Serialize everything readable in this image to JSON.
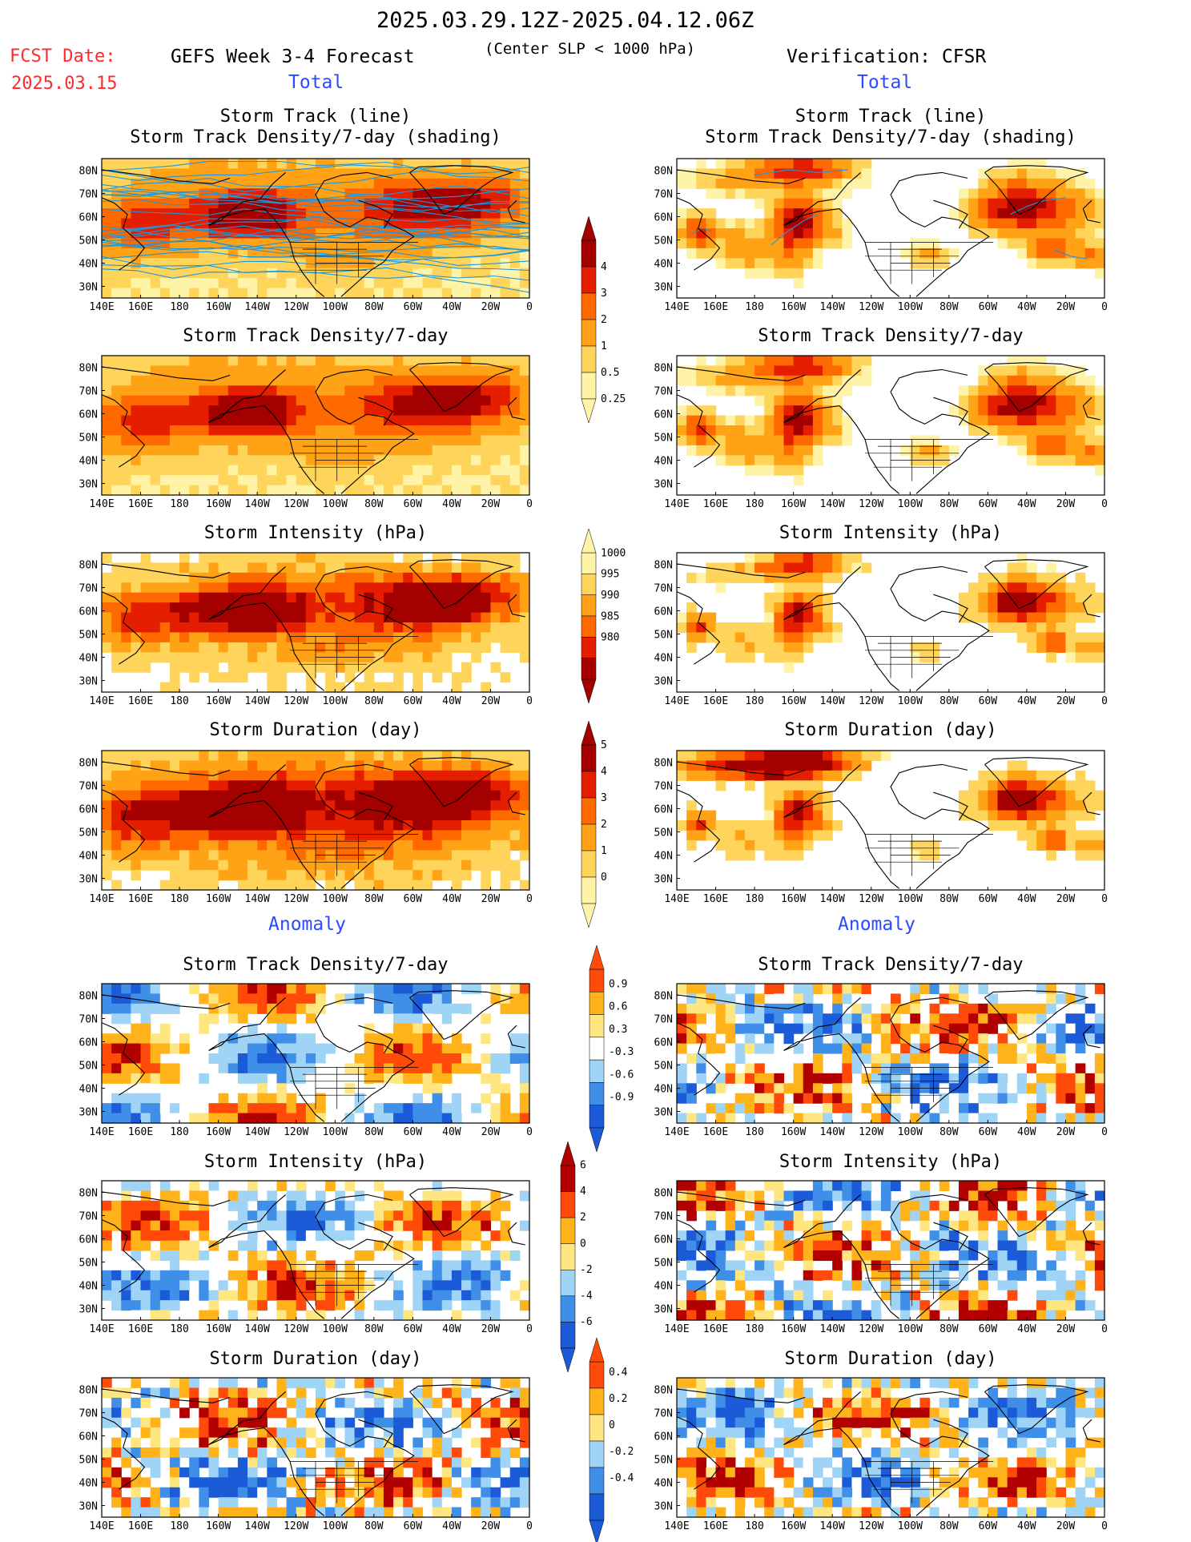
{
  "header": {
    "date_range": "2025.03.29.12Z-2025.04.12.06Z",
    "fcst_label": "FCST Date:",
    "fcst_date": "2025.03.15",
    "left_title": "GEFS Week 3-4 Forecast",
    "subtitle": "(Center SLP < 1000 hPa)",
    "right_title": "Verification: CFSR",
    "total_label": "Total",
    "anomaly_label": "Anomaly"
  },
  "axes": {
    "lon_ticks": [
      "140E",
      "160E",
      "180",
      "160W",
      "140W",
      "120W",
      "100W",
      "80W",
      "60W",
      "40W",
      "20W",
      "0"
    ],
    "lat_ticks": [
      "80N",
      "70N",
      "60N",
      "50N",
      "40N",
      "30N"
    ]
  },
  "colors": {
    "dens": [
      "#fff3a8",
      "#ffd45a",
      "#ffa215",
      "#ff6a00",
      "#e61e00",
      "#a50000"
    ],
    "intensity": [
      "#a50000",
      "#e61e00",
      "#ff6a00",
      "#ffa215",
      "#ffd45a",
      "#fff3a8"
    ],
    "anom": [
      "#1c5bd8",
      "#3f8fe8",
      "#9fd4f7",
      "#ffffff",
      "#ffe680",
      "#ffb21a",
      "#ff4a0a",
      "#b20000"
    ],
    "track_line": "#2196d8"
  },
  "colorbars": {
    "density": {
      "labels": [
        "4",
        "3",
        "2",
        "1",
        "0.5",
        "0.25"
      ]
    },
    "intensity": {
      "labels": [
        "1000",
        "995",
        "990",
        "985",
        "980"
      ]
    },
    "duration": {
      "labels": [
        "5",
        "4",
        "3",
        "2",
        "1",
        "0"
      ]
    },
    "density_anom": {
      "labels": [
        "0.9",
        "0.6",
        "0.3",
        "-0.3",
        "-0.6",
        "-0.9"
      ]
    },
    "intensity_anom": {
      "labels": [
        "6",
        "4",
        "2",
        "0",
        "-2",
        "-4",
        "-6"
      ]
    },
    "duration_anom": {
      "labels": [
        "0.4",
        "0.2",
        "0",
        "-0.2",
        "-0.4"
      ]
    }
  },
  "chart_data": [
    {
      "type": "heatmap",
      "panel": "forecast-total-track",
      "title": "Storm Track (line)",
      "subtitle": "Storm Track Density/7-day (shading)",
      "note": "storm track lines over density shading"
    },
    {
      "type": "heatmap",
      "panel": "verification-total-track",
      "title": "Storm Track (line)",
      "subtitle": "Storm Track Density/7-day (shading)"
    },
    {
      "type": "heatmap",
      "panel": "forecast-total-density",
      "title": "Storm Track Density/7-day"
    },
    {
      "type": "heatmap",
      "panel": "verification-total-density",
      "title": "Storm Track Density/7-day"
    },
    {
      "type": "heatmap",
      "panel": "forecast-total-intensity",
      "title": "Storm Intensity (hPa)"
    },
    {
      "type": "heatmap",
      "panel": "verification-total-intensity",
      "title": "Storm Intensity (hPa)"
    },
    {
      "type": "heatmap",
      "panel": "forecast-total-duration",
      "title": "Storm Duration (day)"
    },
    {
      "type": "heatmap",
      "panel": "verification-total-duration",
      "title": "Storm Duration (day)"
    },
    {
      "type": "heatmap",
      "panel": "forecast-anom-density",
      "title": "Storm Track Density/7-day"
    },
    {
      "type": "heatmap",
      "panel": "verification-anom-density",
      "title": "Storm Track Density/7-day"
    },
    {
      "type": "heatmap",
      "panel": "forecast-anom-intensity",
      "title": "Storm Intensity (hPa)"
    },
    {
      "type": "heatmap",
      "panel": "verification-anom-intensity",
      "title": "Storm Intensity (hPa)"
    },
    {
      "type": "heatmap",
      "panel": "forecast-anom-duration",
      "title": "Storm Duration (day)"
    },
    {
      "type": "heatmap",
      "panel": "verification-anom-duration",
      "title": "Storm Duration (day)"
    }
  ]
}
